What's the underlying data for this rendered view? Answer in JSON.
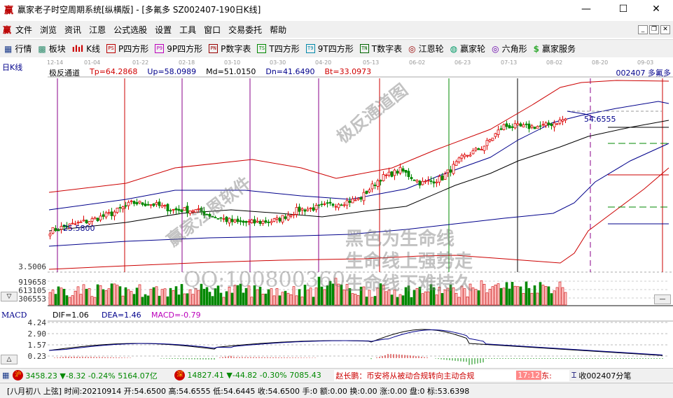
{
  "window": {
    "logo": "赢",
    "title": "赢家老子时空周期系统[纵横版] - [多氟多   SZ002407-190日K线]",
    "minimize": "—",
    "maximize": "☐",
    "close": "✕"
  },
  "menu": {
    "logo": "赢",
    "items": [
      "文件",
      "浏览",
      "资讯",
      "江恩",
      "公式选股",
      "设置",
      "工具",
      "窗口",
      "交易委托",
      "帮助"
    ],
    "controls": [
      "_",
      "❐",
      "✕"
    ]
  },
  "toolbar": [
    {
      "icon": "grid-icon",
      "glyph": "▦",
      "label": "行情",
      "color": "#1a3a8a"
    },
    {
      "icon": "blocks-icon",
      "glyph": "▩",
      "label": "板块",
      "color": "#2a8a6a"
    },
    {
      "icon": "candles-icon",
      "glyph": "ılıl",
      "label": "K线",
      "color": "#c00"
    },
    {
      "icon": "ps-icon",
      "glyph": "PS",
      "label": "P四方形",
      "color": "#b00"
    },
    {
      "icon": "p9-icon",
      "glyph": "P9",
      "label": "9P四方形",
      "color": "#b0b"
    },
    {
      "icon": "pn-icon",
      "glyph": "PN",
      "label": "P数字表",
      "color": "#900"
    },
    {
      "icon": "ts-icon",
      "glyph": "TS",
      "label": "T四方形",
      "color": "#080"
    },
    {
      "icon": "t9-icon",
      "glyph": "T9",
      "label": "9T四方形",
      "color": "#08a"
    },
    {
      "icon": "tn-icon",
      "glyph": "TN",
      "label": "T数字表",
      "color": "#060"
    },
    {
      "icon": "gann-wheel-icon",
      "glyph": "◎",
      "label": "江恩轮",
      "color": "#900"
    },
    {
      "icon": "winner-wheel-icon",
      "glyph": "◍",
      "label": "赢家轮",
      "color": "#096"
    },
    {
      "icon": "hexagon-icon",
      "glyph": "◎",
      "label": "六角形",
      "color": "#60a"
    },
    {
      "icon": "dollar-icon",
      "glyph": "$",
      "label": "赢家服务",
      "color": "#3a3"
    }
  ],
  "chart": {
    "period_label": "日K线",
    "indicator": "极反通道",
    "params": [
      {
        "text": "Tp=64.2868",
        "color": "#d00000"
      },
      {
        "text": "Up=58.0989",
        "color": "#00008b"
      },
      {
        "text": "Md=51.0150",
        "color": "#000000"
      },
      {
        "text": "Dn=41.6490",
        "color": "#00008b"
      },
      {
        "text": "Bt=33.0973",
        "color": "#d00000"
      }
    ],
    "stock": "002407  多氟多",
    "dates": [
      "12-14",
      "01-04",
      "01-22",
      "02-18",
      "03-10",
      "03-30",
      "04-20",
      "05-13",
      "06-02",
      "06-23",
      "07-13",
      "08-02",
      "08-20",
      "09-03"
    ],
    "price_labels": {
      "low_marker": "25.5800",
      "high_marker": "54.6555",
      "bottom": "3.5006"
    },
    "volume_labels": [
      "919658",
      "613105",
      "306553"
    ],
    "macd": {
      "title": "MACD",
      "dif": "DIF=1.06",
      "dea": "DEA=1.46",
      "macd": "MACD=-0.79",
      "axis": [
        "4.24",
        "2.90",
        "1.57",
        "0.23"
      ]
    },
    "watermarks": [
      "极反通道图",
      "赢家江恩软件",
      "黑色为生命线",
      "生命线上强势走",
      "生命线下难持久",
      "QQ:100800360"
    ],
    "colors": {
      "up": "#d00000",
      "down": "#008000",
      "tp": "#c00000",
      "up_band": "#00008b",
      "mid": "#000000"
    }
  },
  "chart_data": {
    "type": "candlestick",
    "close_anchors": [
      25.2,
      26.7,
      28.0,
      29.8,
      32.6,
      32.2,
      30.7,
      30.7,
      28.9,
      27.4,
      27.4,
      28.0,
      30.7,
      31.3,
      32.6,
      33.5,
      39.0,
      41.2,
      37.7,
      39.0,
      44.5,
      47.3,
      52.8,
      52.5,
      52.8,
      54.65
    ],
    "last_high": 54.6555
  },
  "status1": {
    "sh_badge": "沪",
    "sh": "3458.23 ▼-8.32 -0.24% 5164.07亿",
    "sz_badge": "深",
    "sz": "14827.41 ▼-44.82 -0.30% 7085.43",
    "news": "赵长鹏：币安将从被动合规转向主动合规",
    "time": "17:12",
    "news2": "东:",
    "tick": "收002407分笔"
  },
  "status2": {
    "text": "[八月初八  上弦] 时间:20210914 开:54.6500 高:54.6555 低:54.6445 收:54.6500 手:0 额:0.00 换:0.00 涨:0.00 盘:0 标:53.6398"
  }
}
